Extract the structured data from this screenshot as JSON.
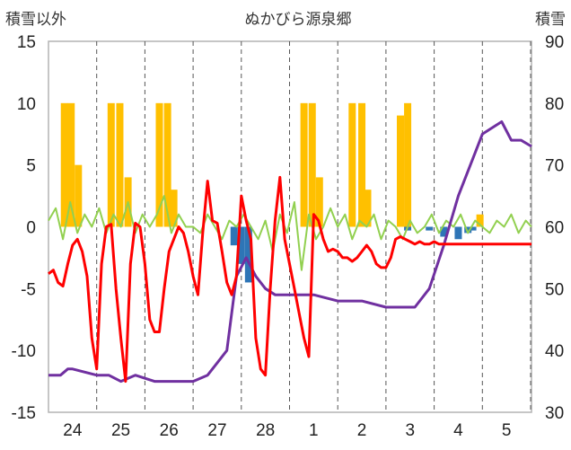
{
  "chart_data": {
    "type": "line",
    "title": "ぬかびら源泉郷",
    "left_axis_label": "積雪以外",
    "right_axis_label": "積雪",
    "left_ticks": [
      "15",
      "10",
      "5",
      "0",
      "-5",
      "-10",
      "-15"
    ],
    "right_ticks": [
      "90",
      "80",
      "70",
      "60",
      "50",
      "40",
      "30"
    ],
    "ylim_left": [
      -15,
      15
    ],
    "ylim_right": [
      30,
      90
    ],
    "x_ticks": [
      "24",
      "25",
      "26",
      "27",
      "28",
      "1",
      "2",
      "3",
      "4",
      "5"
    ],
    "grid": "dashed-vertical",
    "colors": {
      "temperature": "#ff0000",
      "snow_depth": "#7030a0",
      "precipitation": "#ffc000",
      "snow_change": "#2e75b6",
      "wind": "#92d050",
      "grid": "#555555",
      "frame": "#b4b4b4"
    },
    "series": [
      {
        "key": "temperature",
        "axis": "left",
        "style": "line",
        "x": [
          0,
          0.1,
          0.2,
          0.3,
          0.4,
          0.5,
          0.6,
          0.7,
          0.8,
          0.9,
          1,
          1.1,
          1.2,
          1.3,
          1.4,
          1.5,
          1.6,
          1.7,
          1.8,
          1.9,
          2,
          2.1,
          2.2,
          2.3,
          2.4,
          2.5,
          2.6,
          2.7,
          2.8,
          2.9,
          3,
          3.1,
          3.2,
          3.3,
          3.4,
          3.5,
          3.6,
          3.7,
          3.8,
          3.9,
          4,
          4.1,
          4.2,
          4.3,
          4.4,
          4.5,
          4.6,
          4.7,
          4.8,
          4.9,
          5,
          5.1,
          5.2,
          5.3,
          5.4,
          5.5,
          5.6,
          5.7,
          5.8,
          5.9,
          6,
          6.1,
          6.2,
          6.3,
          6.4,
          6.5,
          6.6,
          6.7,
          6.8,
          6.9,
          7,
          7.1,
          7.2,
          7.3,
          7.4,
          7.5,
          7.6,
          7.7,
          7.8,
          7.9,
          8,
          8.1,
          8.2,
          8.3,
          8.4,
          8.5,
          8.6,
          8.7,
          8.8,
          8.9,
          9,
          9.1,
          9.2,
          9.3,
          9.4,
          9.5,
          9.6,
          9.7,
          9.8,
          9.9,
          10.1
        ],
        "values": [
          -3.8,
          -3.5,
          -4.5,
          -4.8,
          -3,
          -1.5,
          -1,
          -2,
          -4,
          -9,
          -11.5,
          -3,
          0,
          0.2,
          -5,
          -9,
          -12.5,
          -3,
          0.3,
          0,
          -3,
          -7.5,
          -8.5,
          -8.5,
          -5,
          -2,
          -1,
          0,
          -0.5,
          -2,
          -4,
          -5.5,
          -0.5,
          3.7,
          0.5,
          0.3,
          -2,
          -4.5,
          -5.5,
          -4,
          2.5,
          0.5,
          -1,
          -9,
          -11.5,
          -12,
          -5,
          0.5,
          4,
          -1,
          -3,
          -5,
          -7,
          -9,
          -10.5,
          1,
          0.5,
          -1,
          -2,
          -1.8,
          -2,
          -2.5,
          -2.5,
          -2.8,
          -2.5,
          -2,
          -1.5,
          -2,
          -3,
          -3.3,
          -3.3,
          -2.5,
          -1,
          -0.8,
          -1,
          -1.2,
          -1.4,
          -1.2,
          -1.4,
          -1.4,
          -1.2,
          -1.4,
          -1.4,
          -1.4,
          -1.4,
          -1.4,
          -1.4,
          -1.4,
          -1.4,
          -1.4,
          -1.4,
          -1.4,
          -1.4,
          -1.4,
          -1.4,
          -1.4,
          -1.4,
          -1.4,
          -1.4,
          -1.4,
          -1.4
        ]
      },
      {
        "key": "snow_depth",
        "axis": "right",
        "style": "line",
        "x": [
          0,
          0.25,
          0.4,
          0.5,
          1,
          1.25,
          1.5,
          1.8,
          2.2,
          2.5,
          3,
          3.3,
          3.5,
          3.7,
          3.9,
          4.1,
          4.3,
          4.5,
          4.7,
          5.5,
          6,
          6.5,
          7,
          7.3,
          7.6,
          7.9,
          8.2,
          8.5,
          8.8,
          9,
          9.2,
          9.4,
          9.6,
          9.8,
          10.1
        ],
        "values": [
          36,
          36,
          37,
          37,
          36,
          36,
          35,
          36,
          35,
          35,
          35,
          36,
          38,
          40,
          52,
          55,
          52,
          50,
          49,
          49,
          48,
          48,
          47,
          47,
          47,
          50,
          57,
          65,
          71,
          75,
          76,
          77,
          74,
          74,
          73
        ]
      },
      {
        "key": "precipitation",
        "axis": "left",
        "style": "bars",
        "x": [
          0.33,
          0.47,
          0.62,
          1.3,
          1.48,
          1.65,
          2.3,
          2.47,
          2.6,
          5.3,
          5.47,
          5.62,
          6.3,
          6.5,
          6.62,
          7.3,
          7.45,
          8.95
        ],
        "values": [
          10,
          10,
          5,
          10,
          10,
          4,
          10,
          10,
          3,
          10,
          10,
          4,
          10,
          10,
          3,
          9,
          10,
          1
        ]
      },
      {
        "key": "snow_change",
        "axis": "left",
        "style": "bars",
        "x": [
          3.85,
          4.0,
          4.15,
          7.45,
          7.9,
          8.2,
          8.5,
          8.7,
          8.8
        ],
        "values": [
          -1.5,
          -3,
          -4.5,
          -0.3,
          -0.3,
          -0.8,
          -1,
          -0.5,
          -0.3
        ]
      },
      {
        "key": "wind",
        "axis": "left",
        "style": "line",
        "x": [
          0,
          0.15,
          0.3,
          0.45,
          0.6,
          0.75,
          0.9,
          1.05,
          1.2,
          1.35,
          1.5,
          1.65,
          1.8,
          1.95,
          2.1,
          2.25,
          2.4,
          2.55,
          2.7,
          2.85,
          3,
          3.15,
          3.3,
          3.45,
          3.6,
          3.75,
          3.9,
          4.05,
          4.2,
          4.35,
          4.5,
          4.65,
          4.8,
          4.95,
          5.1,
          5.25,
          5.4,
          5.55,
          5.7,
          5.85,
          6,
          6.15,
          6.3,
          6.45,
          6.6,
          6.75,
          6.9,
          7.05,
          7.2,
          7.35,
          7.5,
          7.65,
          7.8,
          7.95,
          8.1,
          8.25,
          8.4,
          8.55,
          8.7,
          8.85,
          9,
          9.15,
          9.3,
          9.45,
          9.6,
          9.75,
          9.9,
          10.1
        ],
        "values": [
          0.5,
          1.5,
          -1,
          2,
          -0.5,
          1,
          0,
          1.5,
          -0.5,
          1,
          0,
          2,
          -0.5,
          1,
          0,
          1,
          2.5,
          -0.5,
          1,
          0,
          0,
          -0.5,
          1,
          0,
          -1,
          0.5,
          0,
          1,
          0,
          -1,
          0.5,
          -2,
          1,
          -0.5,
          2,
          -3.5,
          1,
          -1,
          0,
          1.5,
          0,
          1,
          -1,
          0.5,
          0,
          1,
          -1,
          0.5,
          0,
          -1,
          0.5,
          -0.5,
          0,
          1,
          -0.5,
          0.5,
          0,
          1,
          -0.5,
          0.5,
          0,
          -0.5,
          0.5,
          0,
          1,
          -0.5,
          0.5,
          0
        ]
      }
    ]
  }
}
